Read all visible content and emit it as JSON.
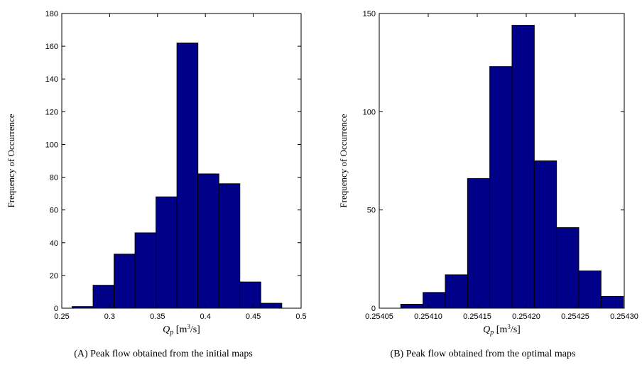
{
  "chart_data": [
    {
      "type": "bar",
      "caption": "(A) Peak flow obtained from the initial maps",
      "xlabel": {
        "var": "Q",
        "sub": "p",
        "pre": " [m",
        "sup": "3",
        "post": "/s]"
      },
      "ylabel": "Frequency of Occurrence",
      "xlim": [
        0.25,
        0.5
      ],
      "ylim": [
        0,
        180
      ],
      "xticks": [
        0.25,
        0.3,
        0.35,
        0.4,
        0.45,
        0.5
      ],
      "xtick_labels": [
        "0.25",
        "0.3",
        "0.35",
        "0.4",
        "0.45",
        "0.5"
      ],
      "yticks": [
        0,
        20,
        40,
        60,
        80,
        100,
        120,
        140,
        160,
        180
      ],
      "ytick_labels": [
        "0",
        "20",
        "40",
        "60",
        "80",
        "100",
        "120",
        "140",
        "160",
        "180"
      ],
      "bins_start": 0.2608,
      "bin_width": 0.0219,
      "values": [
        1,
        14,
        33,
        46,
        68,
        162,
        82,
        76,
        16,
        3
      ],
      "bar_color": "#000088",
      "grid": false
    },
    {
      "type": "bar",
      "caption": "(B) Peak flow obtained from the optimal maps",
      "xlabel": {
        "var": "Q",
        "sub": "p",
        "pre": " [m",
        "sup": "3",
        "post": "/s]"
      },
      "ylabel": "Frequency of Occurrence",
      "xlim": [
        0.25405,
        0.2543
      ],
      "ylim": [
        0,
        150
      ],
      "xticks": [
        0.25405,
        0.2541,
        0.25415,
        0.2542,
        0.25425,
        0.2543
      ],
      "xtick_labels": [
        "0.25405",
        "0.25410",
        "0.25415",
        "0.25420",
        "0.25425",
        "0.25430"
      ],
      "yticks": [
        0,
        50,
        100,
        150
      ],
      "ytick_labels": [
        "0",
        "50",
        "100",
        "150"
      ],
      "bins_start": 0.254072,
      "bin_width": 2.27e-05,
      "values": [
        2,
        8,
        17,
        66,
        123,
        144,
        75,
        41,
        19,
        6
      ],
      "bar_color": "#000088",
      "grid": false
    }
  ]
}
